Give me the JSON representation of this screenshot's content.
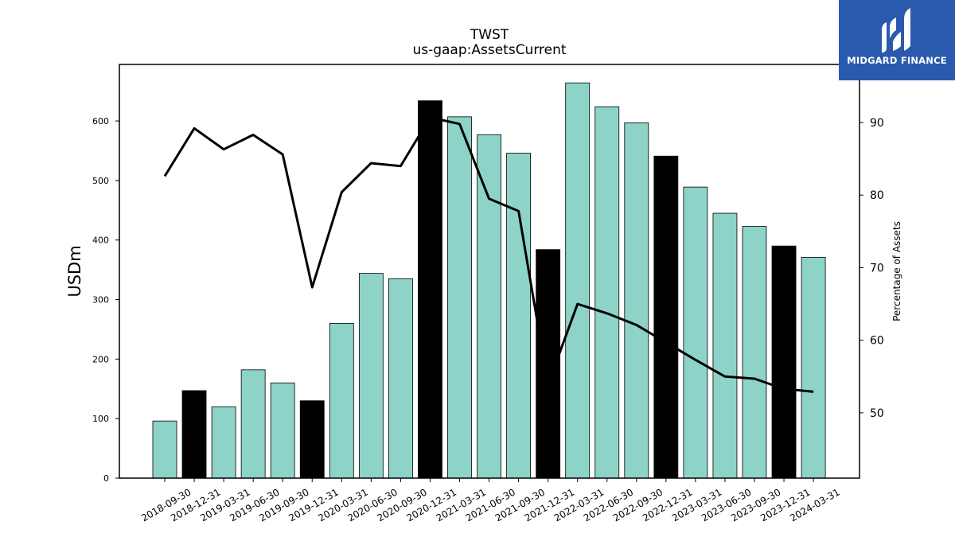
{
  "chart_data": {
    "type": "bar",
    "title": "TWST",
    "subtitle": "us-gaap:AssetsCurrent",
    "ylabel": "USDm",
    "y2label": "Percentage of Assets",
    "ylim": [
      0,
      695
    ],
    "y2lim": [
      41,
      98
    ],
    "yticks": [
      0,
      100,
      200,
      300,
      400,
      500,
      600
    ],
    "y2ticks": [
      50,
      60,
      70,
      80,
      90
    ],
    "categories": [
      "2018-09-30",
      "2018-12-31",
      "2019-03-31",
      "2019-06-30",
      "2019-09-30",
      "2019-12-31",
      "2020-03-31",
      "2020-06-30",
      "2020-09-30",
      "2020-12-31",
      "2021-03-31",
      "2021-06-30",
      "2021-09-30",
      "2021-12-31",
      "2022-03-31",
      "2022-06-30",
      "2022-09-30",
      "2022-12-31",
      "2023-03-31",
      "2023-06-30",
      "2023-09-30",
      "2023-12-31",
      "2024-03-31"
    ],
    "series": [
      {
        "type": "bar",
        "axis": "left",
        "values": [
          96,
          147,
          120,
          182,
          160,
          130,
          260,
          344,
          335,
          634,
          607,
          577,
          546,
          384,
          664,
          624,
          597,
          541,
          489,
          445,
          423,
          390,
          371
        ],
        "highlight": [
          false,
          true,
          false,
          false,
          false,
          true,
          false,
          false,
          false,
          true,
          false,
          false,
          false,
          true,
          false,
          false,
          false,
          true,
          false,
          false,
          false,
          true,
          false
        ]
      },
      {
        "type": "line",
        "axis": "right",
        "values": [
          82.6,
          89.2,
          86.3,
          88.3,
          85.6,
          67.3,
          80.4,
          84.4,
          84.0,
          90.7,
          89.8,
          79.5,
          77.8,
          53.9,
          65.0,
          63.7,
          62.1,
          59.7,
          57.3,
          55.0,
          54.7,
          53.3,
          52.9
        ]
      }
    ],
    "colors": {
      "bar": "#8dd3c7",
      "highlight_bar": "#000000",
      "line": "#000000",
      "edge": "#000000"
    }
  },
  "logo": {
    "text": "MIDGARD FINANCE",
    "background": "#2a5aae"
  }
}
